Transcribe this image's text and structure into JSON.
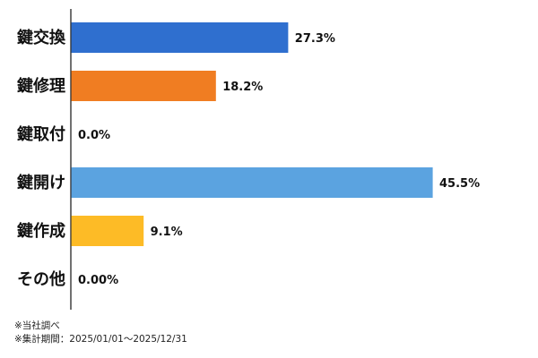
{
  "chart_data": {
    "type": "bar",
    "orientation": "horizontal",
    "categories": [
      "鍵交換",
      "鍵修理",
      "鍵取付",
      "鍵開け",
      "鍵作成",
      "その他"
    ],
    "values": [
      27.3,
      18.2,
      0.0,
      45.5,
      9.1,
      0.0
    ],
    "value_labels": [
      "27.3%",
      "18.2%",
      "0.0%",
      "45.5%",
      "9.1%",
      "0.00%"
    ],
    "colors": [
      "#2f6fcf",
      "#f07d22",
      "#999999",
      "#5ba3e0",
      "#fdbb26",
      "#999999"
    ],
    "xlim": [
      0,
      50
    ],
    "grid": false,
    "legend": "none"
  },
  "notes": {
    "source": "※当社調べ",
    "period": "※集計期間：2025/01/01〜2025/12/31"
  }
}
